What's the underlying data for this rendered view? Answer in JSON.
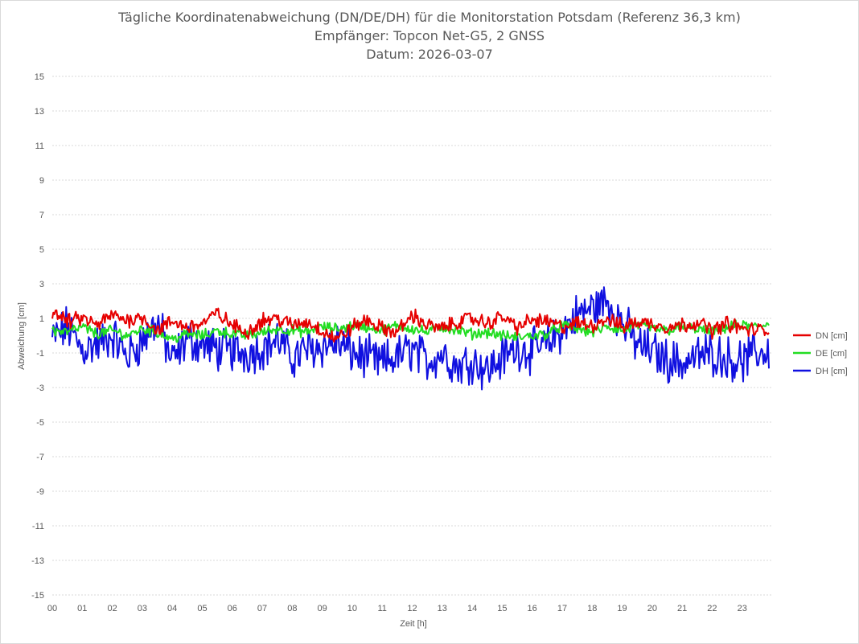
{
  "chart_data": {
    "type": "line",
    "title_lines": [
      "Tägliche Koordinatenabweichung (DN/DE/DH) für die Monitorstation Potsdam (Referenz 36,3 km)",
      "Empfänger: Topcon Net-G5, 2 GNSS",
      "Datum: 2026-03-07"
    ],
    "xlabel": "Zeit [h]",
    "ylabel": "Abweichung [cm]",
    "xlim": [
      0,
      24
    ],
    "ylim": [
      -15,
      15
    ],
    "x_ticks": [
      "00",
      "01",
      "02",
      "03",
      "04",
      "05",
      "06",
      "07",
      "08",
      "09",
      "10",
      "11",
      "12",
      "13",
      "14",
      "15",
      "16",
      "17",
      "18",
      "19",
      "20",
      "21",
      "22",
      "23"
    ],
    "y_ticks": [
      "15",
      "13",
      "11",
      "9",
      "7",
      "5",
      "3",
      "1",
      "-1",
      "-3",
      "-5",
      "-7",
      "-9",
      "-11",
      "-13",
      "-15"
    ],
    "grid": "horizontal dotted",
    "legend_position": "right",
    "x_step_hours": 0.5,
    "series": [
      {
        "name": "DN [cm]",
        "color": "#e60000",
        "values": [
          1.4,
          0.8,
          1.0,
          0.6,
          1.2,
          0.9,
          1.1,
          0.3,
          0.8,
          0.5,
          0.7,
          1.3,
          0.6,
          0.2,
          0.9,
          1.0,
          0.6,
          0.8,
          0.3,
          -0.2,
          0.5,
          0.9,
          0.4,
          0.2,
          1.2,
          0.6,
          0.4,
          0.8,
          1.0,
          0.7,
          1.1,
          0.5,
          0.9,
          0.8,
          0.5,
          0.7,
          0.6,
          1.0,
          0.5,
          0.8,
          0.7,
          0.5,
          0.6,
          0.8,
          0.3,
          0.7,
          0.4,
          0.3,
          0.4
        ]
      },
      {
        "name": "DE [cm]",
        "color": "#22dd22",
        "values": [
          0.3,
          0.2,
          0.5,
          0.1,
          0.3,
          0.0,
          0.4,
          0.2,
          -0.2,
          0.1,
          0.0,
          0.3,
          0.1,
          0.0,
          0.2,
          0.4,
          0.3,
          0.2,
          0.5,
          0.4,
          0.6,
          0.5,
          0.3,
          0.6,
          0.4,
          0.2,
          0.5,
          0.3,
          0.1,
          0.2,
          0.0,
          -0.1,
          0.0,
          0.1,
          0.6,
          0.4,
          0.2,
          0.5,
          0.3,
          0.6,
          0.4,
          0.3,
          0.5,
          0.4,
          0.2,
          0.5,
          0.6,
          0.5,
          0.8
        ]
      },
      {
        "name": "DH [cm]",
        "color": "#1010e0",
        "values": [
          -0.2,
          0.5,
          -0.8,
          -0.5,
          0.0,
          -1.2,
          -0.3,
          0.8,
          -1.5,
          -0.2,
          -0.5,
          -0.8,
          -0.9,
          -1.0,
          -0.7,
          -0.2,
          -1.3,
          -0.8,
          -0.6,
          -0.4,
          -1.0,
          -1.3,
          -1.6,
          -1.2,
          -0.8,
          -1.5,
          -1.0,
          -1.8,
          -1.4,
          -2.0,
          -1.3,
          -0.7,
          -0.9,
          -0.5,
          0.3,
          1.2,
          1.6,
          2.0,
          0.8,
          -0.5,
          -0.9,
          -1.4,
          -1.6,
          -1.2,
          -1.0,
          -1.3,
          -1.5,
          -1.0,
          -0.9
        ]
      }
    ]
  }
}
